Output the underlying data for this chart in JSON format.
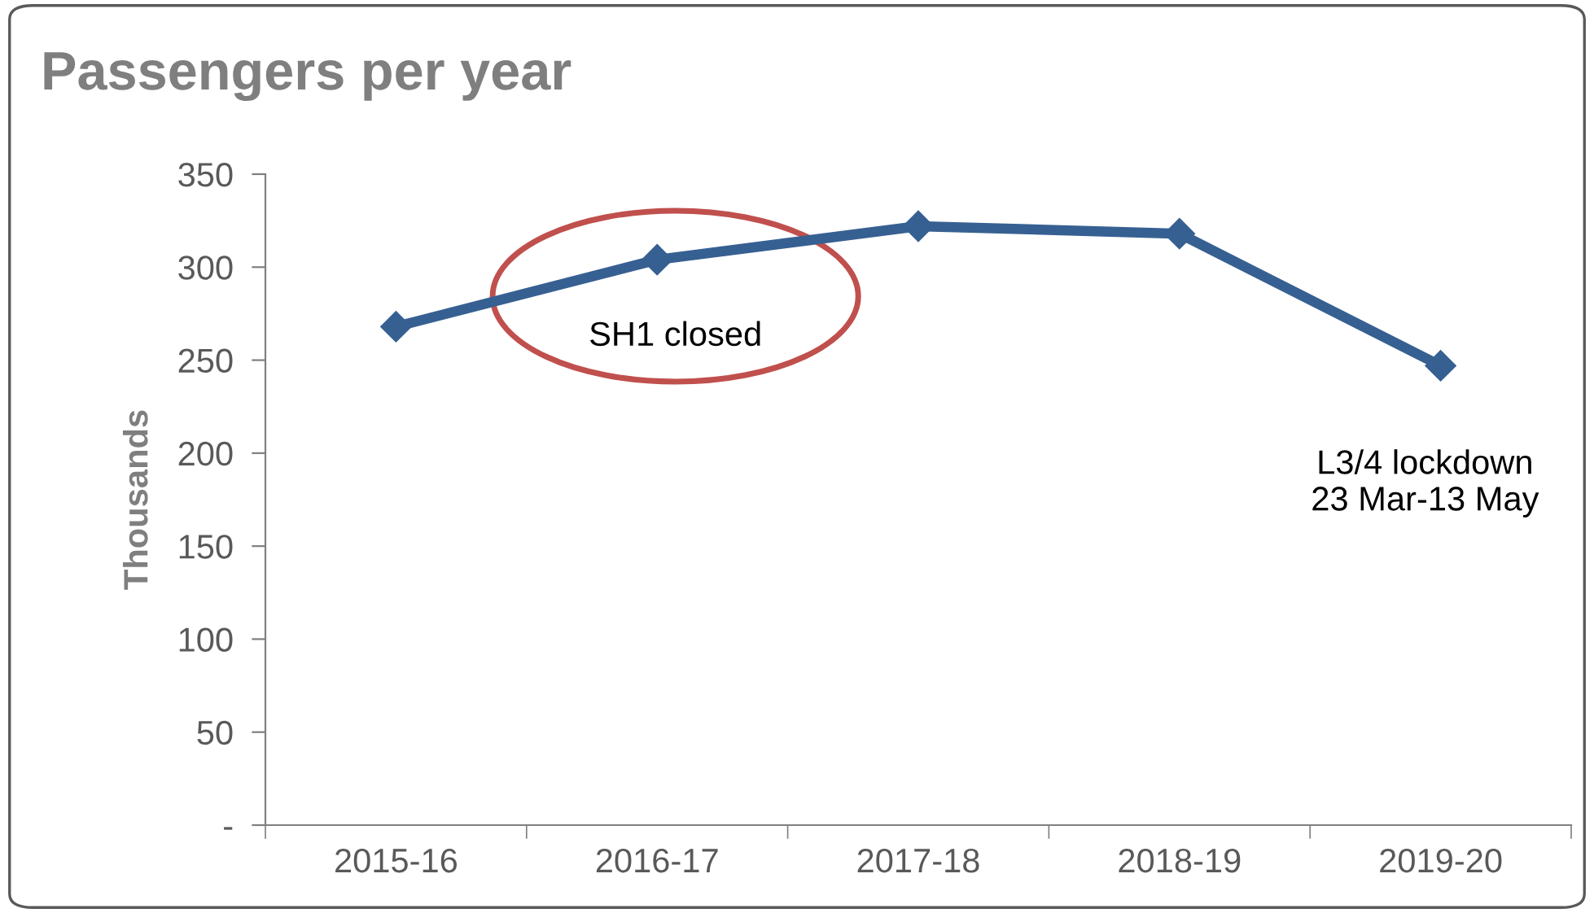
{
  "chart_data": {
    "type": "line",
    "title": "Passengers per year",
    "ylabel": "Thousands",
    "categories": [
      "2015-16",
      "2016-17",
      "2017-18",
      "2018-19",
      "2019-20"
    ],
    "series": [
      {
        "color": "#376092",
        "values": [
          268,
          304,
          322,
          318,
          247
        ]
      }
    ],
    "marker": "diamond",
    "line_style": "solid",
    "grid": false,
    "legend": false,
    "ylim": [
      0,
      350
    ],
    "yticks": [
      {
        "value": 0,
        "label": "-"
      },
      50,
      100,
      150,
      200,
      250,
      300,
      350
    ],
    "annotations": [
      "SH1 closed",
      "L3/4 lockdown\n23 Mar-13 May"
    ]
  }
}
